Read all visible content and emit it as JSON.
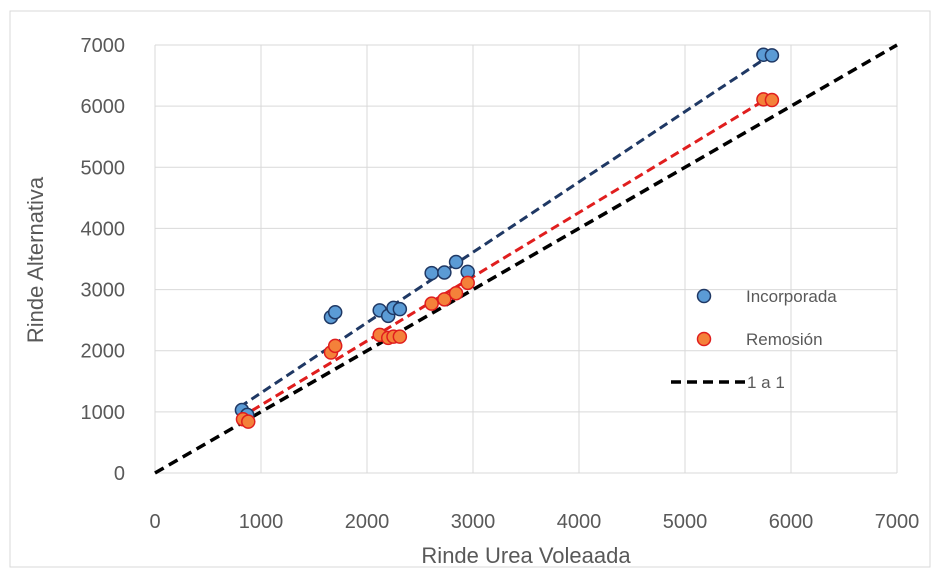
{
  "chart_data": {
    "type": "scatter",
    "xlabel": "Rinde Urea Voleaada",
    "ylabel": "Rinde Alternativa",
    "xlim": [
      0,
      7000
    ],
    "ylim": [
      0,
      7000
    ],
    "x_ticks": [
      "0",
      "1000",
      "2000",
      "3000",
      "4000",
      "5000",
      "6000",
      "7000"
    ],
    "y_ticks": [
      "0",
      "1000",
      "2000",
      "3000",
      "4000",
      "5000",
      "6000",
      "7000"
    ],
    "grid": true,
    "legend_position": "right",
    "series": [
      {
        "name": "Incorporada",
        "kind": "points",
        "color": "#5B9BD5",
        "edge_color": "#1F3864",
        "points": [
          [
            820,
            1030
          ],
          [
            870,
            950
          ],
          [
            1660,
            2550
          ],
          [
            1700,
            2630
          ],
          [
            2120,
            2660
          ],
          [
            2200,
            2570
          ],
          [
            2250,
            2700
          ],
          [
            2310,
            2680
          ],
          [
            2610,
            3270
          ],
          [
            2730,
            3280
          ],
          [
            2840,
            3450
          ],
          [
            2950,
            3290
          ],
          [
            5740,
            6840
          ],
          [
            5820,
            6830
          ]
        ],
        "trendline": {
          "color": "#1F3864",
          "points": [
            [
              800,
              1080
            ],
            [
              5800,
              6830
            ]
          ]
        }
      },
      {
        "name": "Remosión",
        "kind": "points",
        "color": "#F4813A",
        "edge_color": "#E01E1E",
        "points": [
          [
            830,
            880
          ],
          [
            880,
            840
          ],
          [
            1660,
            1970
          ],
          [
            1700,
            2080
          ],
          [
            2120,
            2260
          ],
          [
            2200,
            2210
          ],
          [
            2250,
            2230
          ],
          [
            2310,
            2230
          ],
          [
            2610,
            2770
          ],
          [
            2730,
            2840
          ],
          [
            2840,
            2940
          ],
          [
            2950,
            3110
          ],
          [
            5740,
            6110
          ],
          [
            5820,
            6100
          ]
        ],
        "trendline": {
          "color": "#E01E1E",
          "points": [
            [
              800,
              900
            ],
            [
              5800,
              6150
            ]
          ]
        }
      },
      {
        "name": "1 a 1",
        "kind": "line",
        "color": "#000000",
        "points": [
          [
            0,
            0
          ],
          [
            7000,
            7000
          ]
        ]
      }
    ]
  }
}
